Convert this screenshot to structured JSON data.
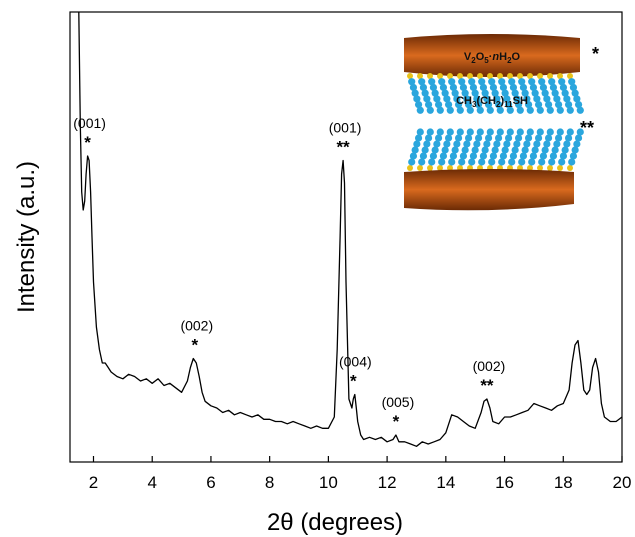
{
  "chart_data": {
    "type": "line",
    "title": "",
    "xlabel": "2θ (degrees)",
    "ylabel": "Intensity (a.u.)",
    "xlim": [
      1.2,
      20
    ],
    "ylim": [
      0,
      100
    ],
    "xticks": [
      2,
      4,
      6,
      8,
      10,
      12,
      14,
      16,
      18,
      20
    ],
    "grid": false,
    "legend": "none",
    "line_color": "#000000",
    "series": [
      {
        "x": [
          1.5,
          1.55,
          1.6,
          1.65,
          1.7,
          1.75,
          1.8,
          1.85,
          1.9,
          1.95,
          2.0,
          2.1,
          2.2,
          2.3,
          2.4,
          2.5,
          2.6,
          2.8,
          3.0,
          3.2,
          3.4,
          3.6,
          3.8,
          4.0,
          4.2,
          4.4,
          4.6,
          4.8,
          5.0,
          5.2,
          5.3,
          5.4,
          5.5,
          5.6,
          5.7,
          5.8,
          6.0,
          6.2,
          6.4,
          6.6,
          6.8,
          7.0,
          7.2,
          7.4,
          7.6,
          7.8,
          8.0,
          8.2,
          8.4,
          8.6,
          8.8,
          9.0,
          9.2,
          9.4,
          9.6,
          9.8,
          10.0,
          10.2,
          10.3,
          10.4,
          10.45,
          10.5,
          10.55,
          10.6,
          10.7,
          10.8,
          10.85,
          10.9,
          10.95,
          11.0,
          11.1,
          11.2,
          11.4,
          11.6,
          11.8,
          12.0,
          12.2,
          12.3,
          12.4,
          12.6,
          12.8,
          13.0,
          13.2,
          13.4,
          13.6,
          13.8,
          14.0,
          14.2,
          14.4,
          14.6,
          14.8,
          15.0,
          15.2,
          15.3,
          15.4,
          15.5,
          15.6,
          15.8,
          16.0,
          16.2,
          16.4,
          16.6,
          16.8,
          17.0,
          17.2,
          17.4,
          17.6,
          17.8,
          18.0,
          18.2,
          18.3,
          18.4,
          18.5,
          18.6,
          18.7,
          18.8,
          18.9,
          19.0,
          19.1,
          19.2,
          19.3,
          19.4,
          19.6,
          19.8,
          20.0
        ],
        "values": [
          100,
          75,
          60,
          56,
          58,
          64,
          68,
          67,
          60,
          50,
          40,
          30,
          25,
          22,
          22,
          21,
          20,
          19,
          18.5,
          19.5,
          19,
          18,
          18.5,
          17.5,
          18.5,
          17,
          17.5,
          16.5,
          15.5,
          18,
          21,
          23,
          22,
          19,
          15.5,
          13.5,
          12.5,
          12,
          11,
          11.5,
          10.5,
          11,
          10.5,
          10,
          10.5,
          9.5,
          9.5,
          9,
          9,
          8.5,
          9,
          8.5,
          8,
          7.5,
          8,
          7.5,
          7.5,
          10,
          25,
          50,
          64,
          67,
          62,
          40,
          14,
          12,
          14,
          15,
          12,
          9,
          6,
          5,
          5.5,
          5,
          5.5,
          4.5,
          5,
          6,
          4.5,
          4.5,
          4,
          3.5,
          4.5,
          4,
          4.5,
          5,
          6.5,
          10.5,
          10,
          9,
          8,
          7.5,
          11,
          13.5,
          14,
          12,
          9,
          8.5,
          10,
          10,
          10.5,
          11,
          11.5,
          13,
          12.5,
          12,
          11.5,
          12.5,
          13,
          16,
          22,
          26,
          27,
          22,
          16,
          15,
          16,
          21,
          23,
          20,
          13,
          10,
          9,
          9,
          10
        ]
      }
    ],
    "peak_labels": [
      {
        "hkl": "(001)",
        "mark": "*",
        "x": 1.8,
        "y": 68
      },
      {
        "hkl": "(002)",
        "mark": "*",
        "x": 5.45,
        "y": 23
      },
      {
        "hkl": "(001)",
        "mark": "**",
        "x": 10.5,
        "y": 67
      },
      {
        "hkl": "(004)",
        "mark": "*",
        "x": 10.85,
        "y": 15
      },
      {
        "hkl": "(005)",
        "mark": "*",
        "x": 12.3,
        "y": 6
      },
      {
        "hkl": "(002)",
        "mark": "**",
        "x": 15.4,
        "y": 14
      }
    ],
    "inset": {
      "top_layer_label": "V2O5·nH2O",
      "interlayer_label": "CH3(CH2)11SH",
      "top_layer_mark": "*",
      "interlayer_mark": "**",
      "oxide_color": "#c85a17",
      "molecule_color": "#2aa6dd",
      "headgroup_color": "#e8c21a"
    }
  }
}
